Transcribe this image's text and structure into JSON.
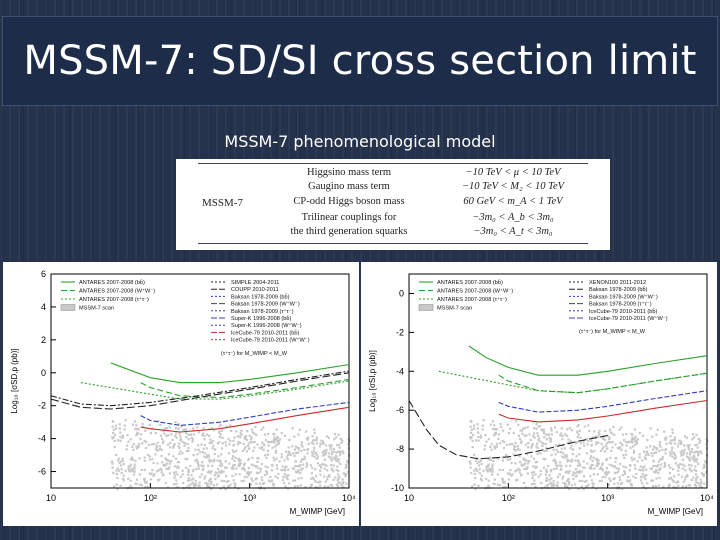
{
  "slide": {
    "title": "MSSM-7: SD/SI cross section limit",
    "subtitle": "MSSM-7 phenomenological model"
  },
  "model_table": {
    "model_name": "MSSM-7",
    "rows": [
      {
        "term": "Higgsino mass term",
        "range": "−10 TeV < μ < 10 TeV"
      },
      {
        "term": "Gaugino mass term",
        "range": "−10 TeV < M₂ < 10 TeV"
      },
      {
        "term": "CP-odd Higgs boson mass",
        "range": "60 GeV < m_A < 1 TeV"
      },
      {
        "term": "Trilinear couplings for",
        "range": "−3m₀ < A_b < 3m₀"
      },
      {
        "term": "the third generation squarks",
        "range": "−3m₀ < A_t < 3m₀"
      }
    ]
  },
  "chart_data": [
    {
      "type": "line",
      "ylabel": "Log₁₀ [σSD,p (pb)]",
      "xlabel": "M_WIMP [GeV]",
      "x_scale": "log",
      "xlim": [
        10,
        10000
      ],
      "ylim": [
        -7,
        6
      ],
      "x_ticks": [
        "10",
        "10²",
        "10³",
        "10⁴"
      ],
      "y_ticks": [
        "6",
        "4",
        "2",
        "0",
        "-2",
        "-4",
        "-6"
      ],
      "legend_left": [
        "ANTARES 2007-2008 (bb̄)",
        "ANTARES 2007-2008 (W⁺W⁻)",
        "ANTARES 2007-2008 (τ⁺τ⁻)",
        "MSSM-7 scan"
      ],
      "legend_right": [
        "SIMPLE 2004-2011",
        "COUPP 2010-2011",
        "Baksan 1978-2009 (bb̄)",
        "Baksan 1978-2009 (W⁺W⁻)",
        "Baksan 1978-2009 (τ⁺τ⁻)",
        "Super-K 1996-2008 (bb̄)",
        "Super-K 1996-2008 (W⁺W⁻)",
        "IceCube-79 2010-2011 (bb̄)",
        "IceCube-79 2010-2011 (W⁺W⁻)"
      ],
      "legend_note": "(τ⁺τ⁻) for M_WIMP < M_W",
      "series": [
        {
          "name": "ANTARES 2007-2008 (bb̄)",
          "color": "#2aa02a",
          "dash": "",
          "x": [
            40,
            60,
            100,
            200,
            500,
            1000,
            3000,
            10000
          ],
          "y": [
            0.6,
            0.2,
            -0.3,
            -0.6,
            -0.6,
            -0.4,
            0.0,
            0.5
          ]
        },
        {
          "name": "ANTARES 2007-2008 (W⁺W⁻)",
          "color": "#2aa02a",
          "dash": "6,3",
          "x": [
            80,
            100,
            200,
            500,
            1000,
            3000,
            10000
          ],
          "y": [
            -0.6,
            -0.9,
            -1.4,
            -1.5,
            -1.3,
            -0.9,
            -0.4
          ]
        },
        {
          "name": "ANTARES 2007-2008 (τ⁺τ⁻)",
          "color": "#2aa02a",
          "dash": "2,2",
          "x": [
            20,
            50,
            100,
            200,
            500,
            1000,
            3000,
            10000
          ],
          "y": [
            -0.6,
            -1.0,
            -1.3,
            -1.6,
            -1.6,
            -1.4,
            -1.0,
            -0.5
          ]
        },
        {
          "name": "SIMPLE 2004-2011",
          "color": "#222222",
          "dash": "6,2,2,2",
          "x": [
            10,
            20,
            40,
            100,
            300,
            1000,
            3000,
            10000
          ],
          "y": [
            -1.4,
            -1.9,
            -2.0,
            -1.8,
            -1.4,
            -0.9,
            -0.4,
            0.1
          ]
        },
        {
          "name": "COUPP 2010-2011",
          "color": "#222222",
          "dash": "8,3",
          "x": [
            10,
            20,
            40,
            100,
            300,
            1000,
            3000,
            10000
          ],
          "y": [
            -1.6,
            -2.1,
            -2.2,
            -2.0,
            -1.5,
            -1.0,
            -0.5,
            0.0
          ]
        },
        {
          "name": "Super-K 1996-2008 (W⁺W⁻)",
          "color": "#2b3fb8",
          "dash": "5,2",
          "x": [
            80,
            100,
            200,
            500,
            1000,
            3000,
            10000
          ],
          "y": [
            -2.6,
            -2.9,
            -3.2,
            -3.0,
            -2.7,
            -2.2,
            -1.8
          ]
        },
        {
          "name": "IceCube-79 2010-2011 (W⁺W⁻)",
          "color": "#cc2a2a",
          "dash": "",
          "x": [
            80,
            100,
            200,
            500,
            1000,
            3000,
            10000
          ],
          "y": [
            -3.3,
            -3.4,
            -3.6,
            -3.4,
            -3.1,
            -2.6,
            -2.1
          ]
        }
      ]
    },
    {
      "type": "line",
      "ylabel": "Log₁₀ [σSI,p (pb)]",
      "xlabel": "M_WIMP [GeV]",
      "x_scale": "log",
      "xlim": [
        10,
        10000
      ],
      "ylim": [
        -10,
        1
      ],
      "x_ticks": [
        "10",
        "10²",
        "10³",
        "10⁴"
      ],
      "y_ticks": [
        "0",
        "-2",
        "-4",
        "-6",
        "-8",
        "-10"
      ],
      "legend_left": [
        "ANTARES 2007-2008 (bb̄)",
        "ANTARES 2007-2008 (W⁺W⁻)",
        "ANTARES 2007-2008 (τ⁺τ⁻)",
        "MSSM-7 scan"
      ],
      "legend_right": [
        "XENON100 2011-2012",
        "Baksan 1978-2009 (bb̄)",
        "Baksan 1978-2009 (W⁺W⁻)",
        "Baksan 1978-2009 (τ⁺τ⁻)",
        "IceCube-79 2010-2011 (bb̄)",
        "IceCube-79 2010-2011 (W⁺W⁻)"
      ],
      "legend_note": "(τ⁺τ⁻) for M_WIMP < M_W",
      "series": [
        {
          "name": "ANTARES 2007-2008 (bb̄)",
          "color": "#2aa02a",
          "dash": "",
          "x": [
            40,
            60,
            100,
            200,
            500,
            1000,
            3000,
            10000
          ],
          "y": [
            -2.7,
            -3.3,
            -3.8,
            -4.2,
            -4.2,
            -4.0,
            -3.6,
            -3.2
          ]
        },
        {
          "name": "ANTARES 2007-2008 (W⁺W⁻)",
          "color": "#2aa02a",
          "dash": "6,3",
          "x": [
            80,
            100,
            200,
            500,
            1000,
            3000,
            10000
          ],
          "y": [
            -4.2,
            -4.5,
            -5.0,
            -5.1,
            -4.9,
            -4.5,
            -4.1
          ]
        },
        {
          "name": "ANTARES 2007-2008 (τ⁺τ⁻)",
          "color": "#2aa02a",
          "dash": "2,2",
          "x": [
            20,
            50,
            100,
            200,
            500,
            1000,
            3000,
            10000
          ],
          "y": [
            -4.0,
            -4.4,
            -4.7,
            -5.0,
            -5.1,
            -4.9,
            -4.5,
            -4.1
          ]
        },
        {
          "name": "XENON100 2011-2012",
          "color": "#222222",
          "dash": "8,3",
          "x": [
            10,
            15,
            20,
            30,
            50,
            100,
            200,
            500,
            1000
          ],
          "y": [
            -5.5,
            -7.0,
            -7.8,
            -8.3,
            -8.5,
            -8.4,
            -8.1,
            -7.6,
            -7.3
          ]
        },
        {
          "name": "Baksan 1978-2009 (W⁺W⁻)",
          "color": "#2b3fb8",
          "dash": "5,2",
          "x": [
            80,
            100,
            200,
            500,
            1000,
            3000,
            10000
          ],
          "y": [
            -5.6,
            -5.8,
            -6.1,
            -6.0,
            -5.8,
            -5.4,
            -5.0
          ]
        },
        {
          "name": "IceCube-79 2010-2011 (W⁺W⁻)",
          "color": "#cc2a2a",
          "dash": "",
          "x": [
            80,
            100,
            200,
            500,
            1000,
            3000,
            10000
          ],
          "y": [
            -6.2,
            -6.4,
            -6.6,
            -6.5,
            -6.3,
            -5.9,
            -5.5
          ]
        }
      ]
    }
  ]
}
